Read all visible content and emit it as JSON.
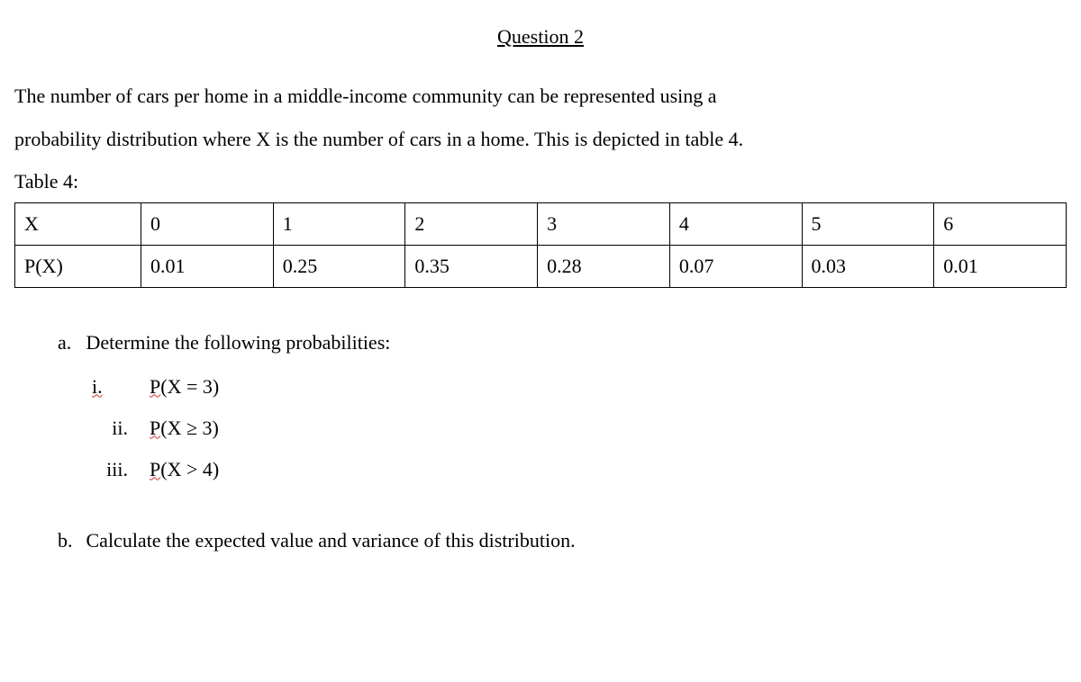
{
  "title": "Question 2",
  "intro_line1": "The number of cars per home in a middle-income community can be represented using a",
  "intro_line2": "probability distribution where X is the number of cars in a home. This is depicted in table 4.",
  "table_label": "Table 4:",
  "table": {
    "row1_label": "X",
    "row2_label": "P(X)",
    "x_values": [
      "0",
      "1",
      "2",
      "3",
      "4",
      "5",
      "6"
    ],
    "p_values": [
      "0.01",
      "0.25",
      "0.35",
      "0.28",
      "0.07",
      "0.03",
      "0.01"
    ],
    "border_color": "#000000",
    "cell_fontsize": 22
  },
  "part_a": {
    "marker": "a.",
    "text": "Determine the following probabilities:",
    "items": [
      {
        "roman": "i.",
        "p_prefix": "P",
        "expr": "(X = 3)",
        "roman_style": "i"
      },
      {
        "roman": "ii.",
        "p_prefix": "P",
        "expr": "(X ≥ 3)",
        "roman_style": "normal"
      },
      {
        "roman": "iii.",
        "p_prefix": "P",
        "expr": "(X > 4)",
        "roman_style": "normal"
      }
    ]
  },
  "part_b": {
    "marker": "b.",
    "text": "Calculate the expected value and variance of this distribution."
  },
  "style": {
    "font_family": "Times New Roman",
    "body_fontsize": 22,
    "text_color": "#000000",
    "background_color": "#ffffff",
    "squiggle_color": "#cc3333"
  }
}
